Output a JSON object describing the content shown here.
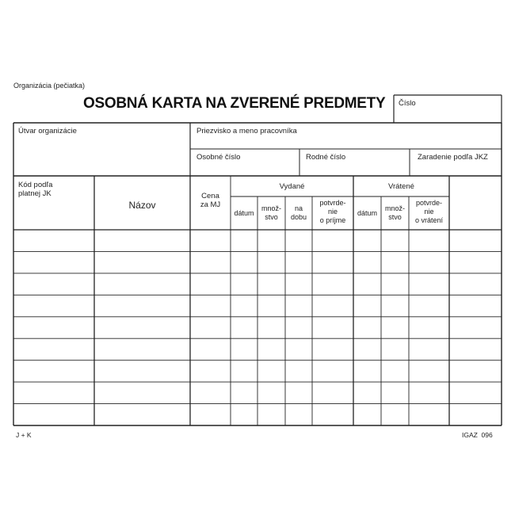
{
  "form": {
    "organization_stamp_label": "Organizácia (pečiatka)",
    "title": "OSOBNÁ KARTA NA ZVERENÉ PREDMETY",
    "number_label": "Číslo",
    "unit_label": "Útvar organizácie",
    "employee_name_label": "Priezvisko a meno pracovníka",
    "personal_number_label": "Osobné číslo",
    "birth_number_label": "Rodné číslo",
    "classification_label": "Zaradenie podľa JKZ"
  },
  "table": {
    "code_header_line1": "Kód podľa",
    "code_header_line2": "platnej JK",
    "name_header": "Názov",
    "price_header_line1": "Cena",
    "price_header_line2": "za MJ",
    "issued_group": "Vydané",
    "returned_group": "Vrátené",
    "issued_columns": {
      "date": "dátum",
      "qty_line1": "množ-",
      "qty_line2": "stvo",
      "period_line1": "na",
      "period_line2": "dobu",
      "confirm_line1": "potvrde-",
      "confirm_line2": "nie",
      "confirm_line3": "o príjme"
    },
    "returned_columns": {
      "date": "dátum",
      "qty_line1": "množ-",
      "qty_line2": "stvo",
      "confirm_line1": "potvrde-",
      "confirm_line2": "nie",
      "confirm_line3": "o vrátení"
    },
    "row_count": 9
  },
  "footer": {
    "publisher": "J + K",
    "form_code": "IGAZ  096"
  },
  "colors": {
    "ink": "#222222",
    "paper": "#ffffff"
  }
}
